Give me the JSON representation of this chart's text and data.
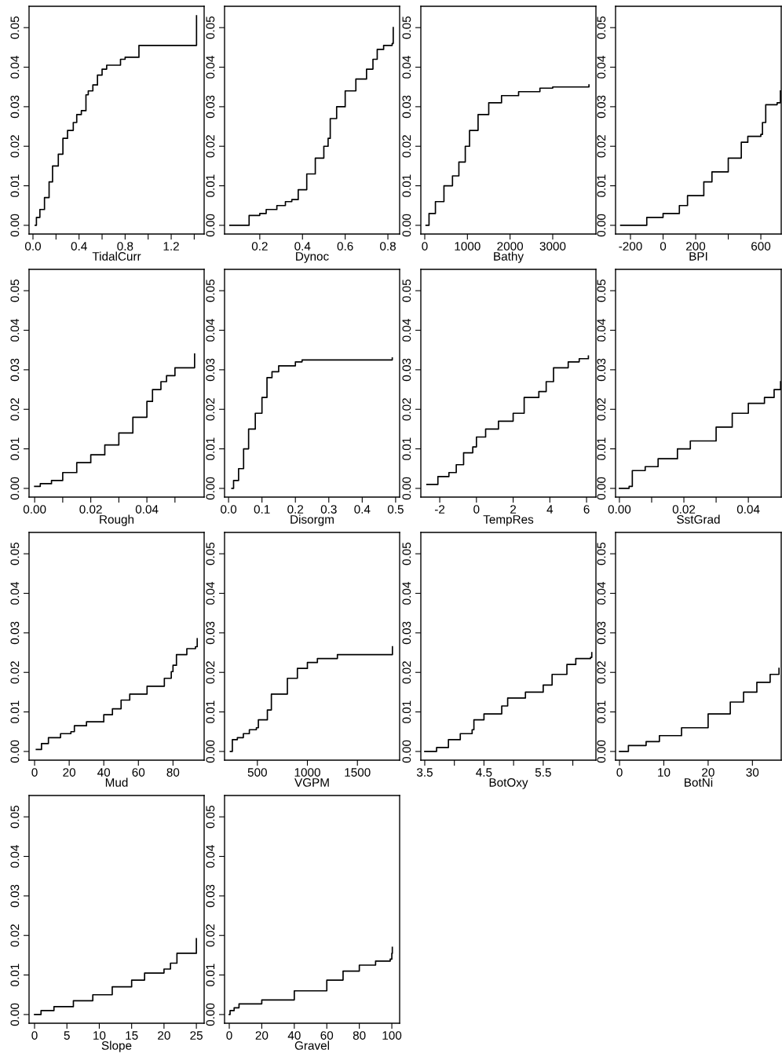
{
  "chart_data": [
    {
      "type": "step",
      "xlabel": "TidalCurr",
      "color": "#000000",
      "x": [
        0.02,
        0.03,
        0.06,
        0.1,
        0.14,
        0.17,
        0.22,
        0.26,
        0.3,
        0.35,
        0.38,
        0.42,
        0.46,
        0.48,
        0.52,
        0.56,
        0.6,
        0.64,
        0.76,
        0.8,
        0.92,
        1.42
      ],
      "values": [
        0,
        0.002,
        0.004,
        0.007,
        0.011,
        0.015,
        0.018,
        0.022,
        0.024,
        0.026,
        0.028,
        0.029,
        0.033,
        0.034,
        0.0355,
        0.038,
        0.0395,
        0.0405,
        0.042,
        0.0425,
        0.0455,
        0.053
      ],
      "xlim": [
        -0.034,
        1.486
      ],
      "xticks": [
        {
          "value": 0,
          "label": "0.0"
        },
        {
          "value": 0.2,
          "label": null
        },
        {
          "value": 0.4,
          "label": "0.4"
        },
        {
          "value": 0.6,
          "label": null
        },
        {
          "value": 0.8,
          "label": "0.8"
        },
        {
          "value": 1.0,
          "label": null
        },
        {
          "value": 1.2,
          "label": "1.2"
        },
        {
          "value": 1.4,
          "label": null
        }
      ],
      "ylim": [
        -0.0022,
        0.0554
      ],
      "yticks": [
        {
          "value": 0,
          "label": "0.00"
        },
        {
          "value": 0.01,
          "label": "0.01"
        },
        {
          "value": 0.02,
          "label": "0.02"
        },
        {
          "value": 0.03,
          "label": "0.03"
        },
        {
          "value": 0.04,
          "label": "0.04"
        },
        {
          "value": 0.05,
          "label": "0.05"
        }
      ]
    },
    {
      "type": "step",
      "xlabel": "Dynoc",
      "color": "#000000",
      "x": [
        0.06,
        0.15,
        0.2,
        0.23,
        0.28,
        0.32,
        0.35,
        0.38,
        0.42,
        0.46,
        0.5,
        0.52,
        0.53,
        0.56,
        0.6,
        0.65,
        0.7,
        0.73,
        0.75,
        0.78,
        0.82,
        0.825
      ],
      "values": [
        0,
        0.0025,
        0.003,
        0.004,
        0.005,
        0.006,
        0.0065,
        0.009,
        0.013,
        0.017,
        0.02,
        0.022,
        0.027,
        0.03,
        0.034,
        0.037,
        0.0395,
        0.042,
        0.0445,
        0.0455,
        0.046,
        0.05
      ],
      "xlim": [
        0.035,
        0.855
      ],
      "xticks": [
        {
          "value": 0.2,
          "label": "0.2"
        },
        {
          "value": 0.4,
          "label": "0.4"
        },
        {
          "value": 0.6,
          "label": "0.6"
        },
        {
          "value": 0.8,
          "label": "0.8"
        }
      ],
      "ylim": [
        -0.0022,
        0.0554
      ],
      "yticks": [
        {
          "value": 0,
          "label": "0.00"
        },
        {
          "value": 0.01,
          "label": "0.01"
        },
        {
          "value": 0.02,
          "label": "0.02"
        },
        {
          "value": 0.03,
          "label": "0.03"
        },
        {
          "value": 0.04,
          "label": "0.04"
        },
        {
          "value": 0.05,
          "label": "0.05"
        }
      ]
    },
    {
      "type": "step",
      "xlabel": "Bathy",
      "color": "#000000",
      "x": [
        30,
        100,
        250,
        450,
        650,
        800,
        950,
        1050,
        1250,
        1500,
        1800,
        2200,
        2700,
        3000,
        3850
      ],
      "values": [
        0,
        0.003,
        0.006,
        0.01,
        0.0125,
        0.016,
        0.02,
        0.024,
        0.028,
        0.031,
        0.0328,
        0.0338,
        0.0347,
        0.035,
        0.0355
      ],
      "xlim": [
        -92,
        4013
      ],
      "xticks": [
        0,
        1000,
        2000,
        3000
      ],
      "ylim": [
        -0.0022,
        0.0554
      ],
      "yticks": [
        {
          "value": 0,
          "label": "0.00"
        },
        {
          "value": 0.01,
          "label": "0.01"
        },
        {
          "value": 0.02,
          "label": "0.02"
        },
        {
          "value": 0.03,
          "label": "0.03"
        },
        {
          "value": 0.04,
          "label": "0.04"
        },
        {
          "value": 0.05,
          "label": "0.05"
        }
      ]
    },
    {
      "type": "step",
      "xlabel": "BPI",
      "color": "#000000",
      "x": [
        -260,
        -150,
        -100,
        0,
        100,
        150,
        250,
        300,
        400,
        480,
        520,
        600,
        610,
        630,
        700,
        720
      ],
      "values": [
        0,
        0,
        0.002,
        0.003,
        0.005,
        0.0075,
        0.011,
        0.0135,
        0.017,
        0.021,
        0.0225,
        0.023,
        0.026,
        0.0305,
        0.031,
        0.034
      ],
      "xlim": [
        -291.6,
        725
      ],
      "xticks": [
        -200,
        0,
        200,
        {
          "value": 400,
          "label": null
        },
        600
      ],
      "ylim": [
        -0.0022,
        0.0554
      ],
      "yticks": [
        {
          "value": 0,
          "label": "0.00"
        },
        {
          "value": 0.01,
          "label": "0.01"
        },
        {
          "value": 0.02,
          "label": "0.02"
        },
        {
          "value": 0.03,
          "label": "0.03"
        },
        {
          "value": 0.04,
          "label": "0.04"
        },
        {
          "value": 0.05,
          "label": "0.05"
        }
      ]
    },
    {
      "type": "step",
      "xlabel": "Rough",
      "color": "#000000",
      "x": [
        0,
        0.002,
        0.006,
        0.01,
        0.015,
        0.02,
        0.025,
        0.03,
        0.035,
        0.04,
        0.042,
        0.045,
        0.047,
        0.05,
        0.057
      ],
      "values": [
        0.0005,
        0.0012,
        0.002,
        0.004,
        0.0065,
        0.0085,
        0.011,
        0.014,
        0.018,
        0.022,
        0.025,
        0.027,
        0.0285,
        0.0305,
        0.034
      ],
      "xlim": [
        -0.002,
        0.0604
      ],
      "xticks": [
        {
          "value": 0,
          "label": "0.00"
        },
        {
          "value": 0.01,
          "label": null
        },
        {
          "value": 0.02,
          "label": "0.02"
        },
        {
          "value": 0.03,
          "label": null
        },
        {
          "value": 0.04,
          "label": "0.04"
        },
        {
          "value": 0.05,
          "label": null
        }
      ],
      "ylim": [
        -0.0022,
        0.0554
      ],
      "yticks": [
        {
          "value": 0,
          "label": "0.00"
        },
        {
          "value": 0.01,
          "label": "0.01"
        },
        {
          "value": 0.02,
          "label": "0.02"
        },
        {
          "value": 0.03,
          "label": "0.03"
        },
        {
          "value": 0.04,
          "label": "0.04"
        },
        {
          "value": 0.05,
          "label": "0.05"
        }
      ]
    },
    {
      "type": "step",
      "xlabel": "Disorgm",
      "color": "#000000",
      "x": [
        0.01,
        0.015,
        0.03,
        0.045,
        0.06,
        0.08,
        0.1,
        0.115,
        0.13,
        0.15,
        0.2,
        0.22,
        0.49
      ],
      "values": [
        0,
        0.002,
        0.005,
        0.01,
        0.015,
        0.019,
        0.023,
        0.028,
        0.0295,
        0.031,
        0.032,
        0.0325,
        0.033
      ],
      "xlim": [
        -0.012,
        0.512
      ],
      "xticks": [
        {
          "value": 0,
          "label": "0.0"
        },
        0.1,
        0.2,
        0.3,
        0.4,
        0.5
      ],
      "ylim": [
        -0.0022,
        0.0554
      ],
      "yticks": [
        {
          "value": 0,
          "label": "0.00"
        },
        {
          "value": 0.01,
          "label": "0.01"
        },
        {
          "value": 0.02,
          "label": "0.02"
        },
        {
          "value": 0.03,
          "label": "0.03"
        },
        {
          "value": 0.04,
          "label": "0.04"
        },
        {
          "value": 0.05,
          "label": "0.05"
        }
      ]
    },
    {
      "type": "step",
      "xlabel": "TempRes",
      "color": "#000000",
      "x": [
        -2.7,
        -2.1,
        -1.5,
        -1.1,
        -0.7,
        -0.2,
        0,
        0.5,
        1.2,
        2,
        2.6,
        3.4,
        3.8,
        4.2,
        5,
        5.6,
        6.1
      ],
      "values": [
        0.001,
        0.003,
        0.004,
        0.006,
        0.009,
        0.0105,
        0.013,
        0.015,
        0.017,
        0.019,
        0.023,
        0.0245,
        0.027,
        0.0305,
        0.032,
        0.0328,
        0.0335
      ],
      "xlim": [
        -3.03,
        6.51
      ],
      "xticks": [
        -2,
        0,
        2,
        4,
        6
      ],
      "ylim": [
        -0.0022,
        0.0554
      ],
      "yticks": [
        {
          "value": 0,
          "label": "0.00"
        },
        {
          "value": 0.01,
          "label": "0.01"
        },
        {
          "value": 0.02,
          "label": "0.02"
        },
        {
          "value": 0.03,
          "label": "0.03"
        },
        {
          "value": 0.04,
          "label": "0.04"
        },
        {
          "value": 0.05,
          "label": "0.05"
        }
      ]
    },
    {
      "type": "step",
      "xlabel": "SstGrad",
      "color": "#000000",
      "x": [
        0,
        0.003,
        0.004,
        0.008,
        0.012,
        0.018,
        0.022,
        0.03,
        0.035,
        0.04,
        0.045,
        0.048,
        0.05
      ],
      "values": [
        0,
        0.0005,
        0.0045,
        0.0055,
        0.0075,
        0.01,
        0.012,
        0.0155,
        0.019,
        0.0215,
        0.023,
        0.025,
        0.027
      ],
      "xlim": [
        -0.0012,
        0.0502
      ],
      "xticks": [
        {
          "value": 0,
          "label": "0.00"
        },
        {
          "value": 0.01,
          "label": null
        },
        {
          "value": 0.02,
          "label": "0.02"
        },
        {
          "value": 0.03,
          "label": null
        },
        {
          "value": 0.04,
          "label": "0.04"
        }
      ],
      "ylim": [
        -0.0022,
        0.0554
      ],
      "yticks": [
        {
          "value": 0,
          "label": "0.00"
        },
        {
          "value": 0.01,
          "label": "0.01"
        },
        {
          "value": 0.02,
          "label": "0.02"
        },
        {
          "value": 0.03,
          "label": "0.03"
        },
        {
          "value": 0.04,
          "label": "0.04"
        },
        {
          "value": 0.05,
          "label": "0.05"
        }
      ]
    },
    {
      "type": "step",
      "xlabel": "Mud",
      "color": "#000000",
      "x": [
        1,
        4,
        8,
        15,
        21,
        23,
        30,
        40,
        45,
        50,
        55,
        65,
        75,
        79,
        80,
        82,
        88,
        93,
        94
      ],
      "values": [
        0.0005,
        0.002,
        0.0035,
        0.0045,
        0.005,
        0.0065,
        0.0075,
        0.0093,
        0.0108,
        0.013,
        0.0145,
        0.0165,
        0.0185,
        0.0202,
        0.0218,
        0.0245,
        0.026,
        0.0265,
        0.0285
      ],
      "xlim": [
        -3.2,
        98
      ],
      "xticks": [
        0,
        20,
        40,
        60,
        80
      ],
      "ylim": [
        -0.0022,
        0.0554
      ],
      "yticks": [
        {
          "value": 0,
          "label": "0.00"
        },
        {
          "value": 0.01,
          "label": "0.01"
        },
        {
          "value": 0.02,
          "label": "0.02"
        },
        {
          "value": 0.03,
          "label": "0.03"
        },
        {
          "value": 0.04,
          "label": "0.04"
        },
        {
          "value": 0.05,
          "label": "0.05"
        }
      ]
    },
    {
      "type": "step",
      "xlabel": "VGPM",
      "color": "#000000",
      "x": [
        230,
        250,
        300,
        360,
        420,
        490,
        510,
        600,
        640,
        800,
        900,
        1000,
        1100,
        1300,
        1850
      ],
      "values": [
        0,
        0.003,
        0.0035,
        0.0045,
        0.0055,
        0.006,
        0.008,
        0.0105,
        0.0145,
        0.0185,
        0.021,
        0.0225,
        0.0235,
        0.0245,
        0.0265
      ],
      "xlim": [
        172,
        1922
      ],
      "xticks": [
        500,
        1000,
        1500
      ],
      "ylim": [
        -0.0022,
        0.0554
      ],
      "yticks": [
        {
          "value": 0,
          "label": "0.00"
        },
        {
          "value": 0.01,
          "label": "0.01"
        },
        {
          "value": 0.02,
          "label": "0.02"
        },
        {
          "value": 0.03,
          "label": "0.03"
        },
        {
          "value": 0.04,
          "label": "0.04"
        },
        {
          "value": 0.05,
          "label": "0.05"
        }
      ]
    },
    {
      "type": "step",
      "xlabel": "BotOxy",
      "color": "#000000",
      "x": [
        3.5,
        3.7,
        3.9,
        4.1,
        4.3,
        4.33,
        4.5,
        4.8,
        4.9,
        5.2,
        5.5,
        5.65,
        5.9,
        6.05,
        6.3,
        6.32
      ],
      "values": [
        0,
        0.001,
        0.003,
        0.0045,
        0.0055,
        0.008,
        0.0095,
        0.0115,
        0.0135,
        0.015,
        0.0168,
        0.0195,
        0.022,
        0.0235,
        0.0238,
        0.025
      ],
      "xlim": [
        3.434,
        6.39
      ],
      "xticks": [
        3.5,
        {
          "value": 4.0,
          "label": null
        },
        4.5,
        {
          "value": 5.0,
          "label": null
        },
        5.5,
        {
          "value": 6.0,
          "label": null
        }
      ],
      "ylim": [
        -0.0022,
        0.0554
      ],
      "yticks": [
        {
          "value": 0,
          "label": "0.00"
        },
        {
          "value": 0.01,
          "label": "0.01"
        },
        {
          "value": 0.02,
          "label": "0.02"
        },
        {
          "value": 0.03,
          "label": "0.03"
        },
        {
          "value": 0.04,
          "label": "0.04"
        },
        {
          "value": 0.05,
          "label": "0.05"
        }
      ]
    },
    {
      "type": "step",
      "xlabel": "BotNi",
      "color": "#000000",
      "x": [
        0,
        2,
        6,
        9,
        14,
        20,
        25,
        28,
        31,
        34,
        36
      ],
      "values": [
        0,
        0.0015,
        0.0025,
        0.004,
        0.006,
        0.0095,
        0.0125,
        0.015,
        0.0175,
        0.0195,
        0.021
      ],
      "xlim": [
        -0.9,
        36.5
      ],
      "xticks": [
        0,
        10,
        20,
        30
      ],
      "ylim": [
        -0.0022,
        0.0554
      ],
      "yticks": [
        {
          "value": 0,
          "label": "0.00"
        },
        {
          "value": 0.01,
          "label": "0.01"
        },
        {
          "value": 0.02,
          "label": "0.02"
        },
        {
          "value": 0.03,
          "label": "0.03"
        },
        {
          "value": 0.04,
          "label": "0.04"
        },
        {
          "value": 0.05,
          "label": "0.05"
        }
      ]
    },
    {
      "type": "step",
      "xlabel": "Slope",
      "color": "#000000",
      "x": [
        0,
        1,
        3,
        6,
        9,
        12,
        15,
        17,
        20,
        21,
        22,
        25
      ],
      "values": [
        0,
        0.001,
        0.002,
        0.0035,
        0.005,
        0.007,
        0.0087,
        0.0105,
        0.0115,
        0.013,
        0.0155,
        0.0192
      ],
      "xlim": [
        -0.85,
        26.2
      ],
      "xticks": [
        0,
        5,
        10,
        15,
        20,
        25
      ],
      "ylim": [
        -0.0022,
        0.0554
      ],
      "yticks": [
        {
          "value": 0,
          "label": "0.00"
        },
        {
          "value": 0.01,
          "label": "0.01"
        },
        {
          "value": 0.02,
          "label": "0.02"
        },
        {
          "value": 0.03,
          "label": "0.03"
        },
        {
          "value": 0.04,
          "label": "0.04"
        },
        {
          "value": 0.05,
          "label": "0.05"
        }
      ]
    },
    {
      "type": "step",
      "xlabel": "Gravel",
      "color": "#000000",
      "x": [
        0,
        0.5,
        3,
        6,
        20,
        40,
        60,
        70,
        80,
        90,
        99,
        100,
        100.3
      ],
      "values": [
        0,
        0.001,
        0.0017,
        0.0027,
        0.0037,
        0.006,
        0.0087,
        0.011,
        0.0125,
        0.0135,
        0.014,
        0.0155,
        0.017
      ],
      "xlim": [
        -2.9,
        104.8
      ],
      "xticks": [
        0,
        20,
        40,
        60,
        80,
        100
      ],
      "ylim": [
        -0.0022,
        0.0554
      ],
      "yticks": [
        {
          "value": 0,
          "label": "0.00"
        },
        {
          "value": 0.01,
          "label": "0.01"
        },
        {
          "value": 0.02,
          "label": "0.02"
        },
        {
          "value": 0.03,
          "label": "0.03"
        },
        {
          "value": 0.04,
          "label": "0.04"
        },
        {
          "value": 0.05,
          "label": "0.05"
        }
      ]
    }
  ]
}
